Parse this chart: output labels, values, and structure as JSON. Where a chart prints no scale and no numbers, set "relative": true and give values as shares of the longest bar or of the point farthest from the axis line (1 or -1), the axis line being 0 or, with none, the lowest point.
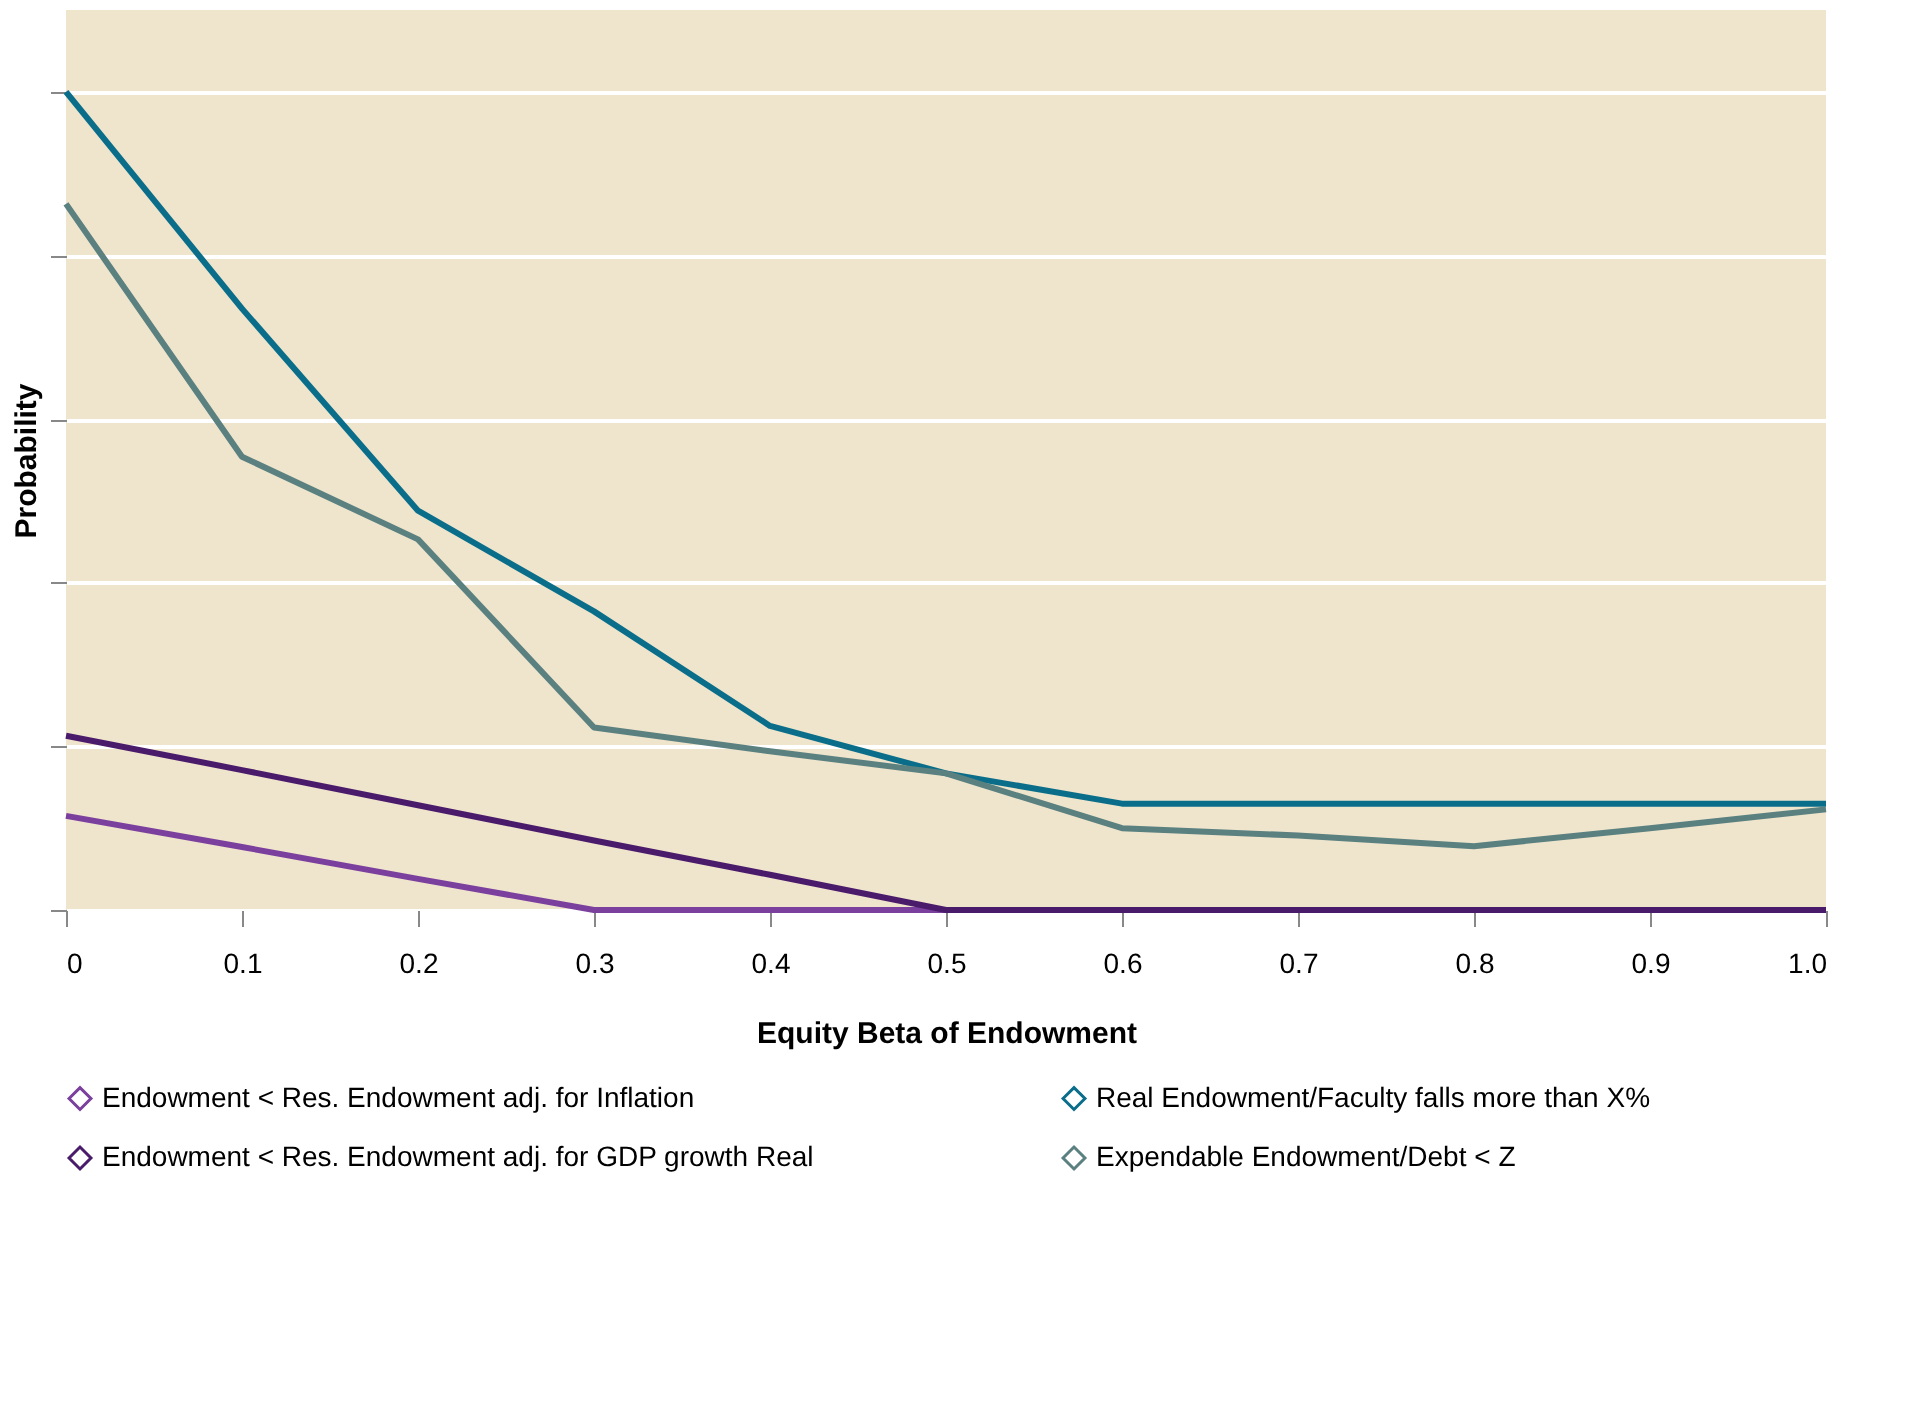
{
  "chart_data": {
    "type": "line",
    "relative": true,
    "xlabel": "Equity Beta of Endowment",
    "ylabel": "Probability",
    "x": [
      0,
      0.1,
      0.2,
      0.3,
      0.4,
      0.5,
      0.6,
      0.7,
      0.8,
      0.9,
      1.0
    ],
    "xlim": [
      0,
      1
    ],
    "xticks": [
      0,
      0.1,
      0.2,
      0.3,
      0.4,
      0.5,
      0.6,
      0.7,
      0.8,
      0.9,
      {
        "value": 1,
        "label": "1.0"
      }
    ],
    "grid": "y",
    "legend": "bottom",
    "marker": "none",
    "line_style": "solid",
    "series": [
      {
        "name": "Endowment < Res. Endowment adj. for Inflation",
        "color": "#7b3f9e",
        "values": [
          0.115,
          0.077,
          0.038,
          0,
          0,
          0,
          null,
          null,
          null,
          null,
          null
        ]
      },
      {
        "name": "Endowment < Res. Endowment adj. for GDP growth Real",
        "color": "#4a1a6b",
        "values": [
          0.213,
          0.171,
          0.128,
          0.085,
          0.043,
          0,
          0,
          0,
          0,
          0,
          0
        ]
      },
      {
        "name": "Real Endowment/Faculty falls more than X%",
        "color": "#0a6e8a",
        "values": [
          1,
          0.735,
          0.488,
          0.365,
          0.225,
          0.167,
          0.13,
          0.13,
          0.13,
          0.13,
          0.13
        ]
      },
      {
        "name": "Expendable Endowment/Debt < Z",
        "color": "#5a8080",
        "values": [
          0.863,
          0.554,
          0.453,
          0.223,
          0.194,
          0.167,
          0.1,
          0.091,
          0.078,
          0.1,
          0.123
        ]
      }
    ]
  }
}
